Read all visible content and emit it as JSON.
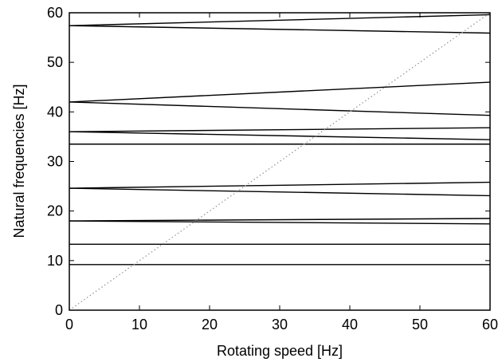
{
  "chart_data": {
    "type": "line",
    "title": "",
    "xlabel": "Rotating speed [Hz]",
    "ylabel": "Natural frequencies [Hz]",
    "xlim": [
      0,
      60
    ],
    "ylim": [
      0,
      60
    ],
    "xticks": [
      0,
      10,
      20,
      30,
      40,
      50,
      60
    ],
    "yticks": [
      0,
      10,
      20,
      30,
      40,
      50,
      60
    ],
    "grid": false,
    "line_color": "#000000",
    "reference_line_color": "#999999",
    "series": [
      {
        "x": [
          0,
          60
        ],
        "y": [
          9.2,
          9.2
        ]
      },
      {
        "x": [
          0,
          60
        ],
        "y": [
          13.3,
          13.3
        ]
      },
      {
        "x": [
          0,
          60
        ],
        "y": [
          18.0,
          18.5
        ]
      },
      {
        "x": [
          0,
          60
        ],
        "y": [
          18.0,
          17.4
        ]
      },
      {
        "x": [
          0,
          60
        ],
        "y": [
          24.6,
          25.8
        ]
      },
      {
        "x": [
          0,
          60
        ],
        "y": [
          24.6,
          23.1
        ]
      },
      {
        "x": [
          0,
          60
        ],
        "y": [
          33.5,
          33.5
        ]
      },
      {
        "x": [
          0,
          60
        ],
        "y": [
          36.0,
          36.8
        ]
      },
      {
        "x": [
          0,
          60
        ],
        "y": [
          36.0,
          34.4
        ]
      },
      {
        "x": [
          0,
          60
        ],
        "y": [
          42.0,
          46.0
        ]
      },
      {
        "x": [
          0,
          60
        ],
        "y": [
          42.0,
          39.3
        ]
      },
      {
        "x": [
          0,
          60
        ],
        "y": [
          57.4,
          59.6
        ]
      },
      {
        "x": [
          0,
          60
        ],
        "y": [
          57.4,
          55.9
        ]
      },
      {
        "x": [
          0,
          60
        ],
        "y": [
          0,
          60
        ],
        "style": "dotted"
      }
    ]
  }
}
